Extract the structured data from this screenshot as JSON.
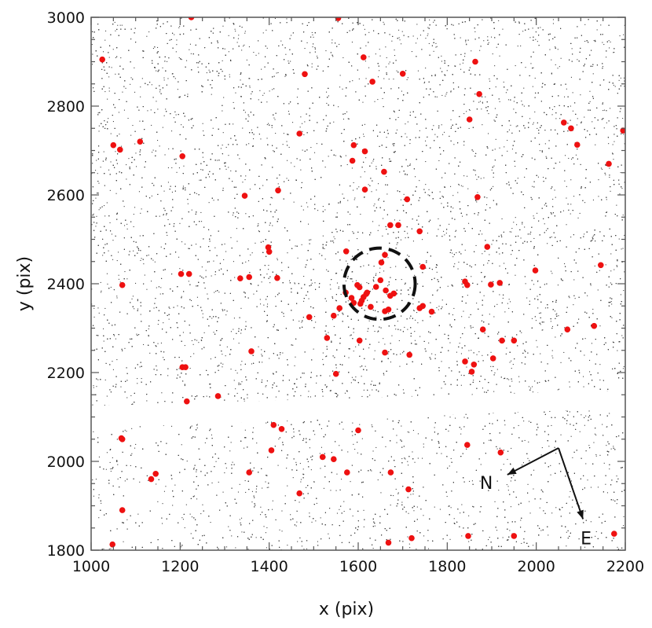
{
  "chart_data": {
    "type": "scatter",
    "xlabel": "x (pix)",
    "ylabel": "y (pix)",
    "xlim": [
      1000,
      2200
    ],
    "ylim": [
      1800,
      3000
    ],
    "xticks": [
      1000,
      1200,
      1400,
      1600,
      1800,
      2000,
      2200
    ],
    "yticks": [
      1800,
      2000,
      2200,
      2400,
      2600,
      2800,
      3000
    ],
    "grid": false,
    "colors": {
      "field_stars": "#444444",
      "members": "#ee1111",
      "circle": "#111111"
    },
    "gap_band": {
      "x": [
        1000,
        2200
      ],
      "y_left": [
        2075,
        2125
      ],
      "y_right": [
        2120,
        2160
      ]
    },
    "circle": {
      "center": [
        1648,
        2400
      ],
      "radius": 80,
      "style": "dashed"
    },
    "compass": {
      "origin": [
        2050,
        2030
      ],
      "labels": {
        "north": "N",
        "east": "E"
      },
      "north_tip": [
        1935,
        1970
      ],
      "east_tip": [
        2105,
        1870
      ]
    },
    "series": [
      {
        "x": [
          1025,
          1050,
          1065,
          1110,
          1205,
          1220,
          1480,
          1555,
          1612,
          1632,
          1700,
          1863,
          1872,
          1850,
          1468,
          1590,
          1615,
          1658,
          1587,
          2062,
          2078,
          2092,
          2195,
          2163,
          1070,
          1205,
          1345,
          1420,
          1615,
          1710,
          1868,
          1672,
          1690,
          1738,
          1573,
          1398,
          1400,
          1890,
          1652,
          1660,
          1745,
          1215,
          1335,
          1355,
          1418,
          1068,
          1603,
          1572,
          1585,
          1590,
          1605,
          1612,
          1620,
          1640,
          1650,
          1662,
          1672,
          1680,
          1598,
          1608,
          1618,
          1628,
          1660,
          1668,
          1558,
          1545,
          1745,
          1738,
          1765,
          1840,
          1845,
          1898,
          1918,
          1998,
          1490,
          1530,
          1603,
          1923,
          1950,
          1880,
          1903,
          1840,
          1855,
          1860,
          1715,
          1660,
          1550,
          2070,
          2130,
          2145,
          1360,
          1285,
          1212,
          1202,
          1410,
          1428,
          1600,
          1070,
          1405,
          1520,
          1545,
          1920,
          1845,
          1145,
          1135,
          1355,
          1575,
          1673,
          1713,
          1468,
          1070,
          1048,
          1668,
          1720,
          1847,
          1950,
          2175,
          1225,
          1555
        ],
        "y": [
          2905,
          2712,
          2702,
          2720,
          2687,
          2422,
          2872,
          3000,
          2910,
          2855,
          2873,
          2900,
          2827,
          2770,
          2738,
          2712,
          2698,
          2652,
          2677,
          2763,
          2750,
          2713,
          2745,
          2670,
          2397,
          2212,
          2598,
          2610,
          2612,
          2590,
          2595,
          2532,
          2532,
          2518,
          2473,
          2482,
          2472,
          2483,
          2448,
          2465,
          2438,
          2135,
          2412,
          2415,
          2413,
          2052,
          2392,
          2380,
          2368,
          2357,
          2355,
          2370,
          2380,
          2393,
          2408,
          2385,
          2373,
          2378,
          2397,
          2362,
          2377,
          2348,
          2338,
          2342,
          2345,
          2328,
          2350,
          2345,
          2337,
          2405,
          2397,
          2398,
          2402,
          2430,
          2325,
          2278,
          2272,
          2272,
          2272,
          2297,
          2232,
          2225,
          2202,
          2218,
          2240,
          2245,
          2197,
          2297,
          2305,
          2442,
          2248,
          2147,
          2212,
          2422,
          2082,
          2073,
          2070,
          2050,
          2025,
          2010,
          2005,
          2020,
          2037,
          1972,
          1960,
          1975,
          1975,
          1975,
          1937,
          1928,
          1890,
          1813,
          1817,
          1827,
          1832,
          1832,
          1837,
          3000,
          2998
        ]
      }
    ]
  }
}
